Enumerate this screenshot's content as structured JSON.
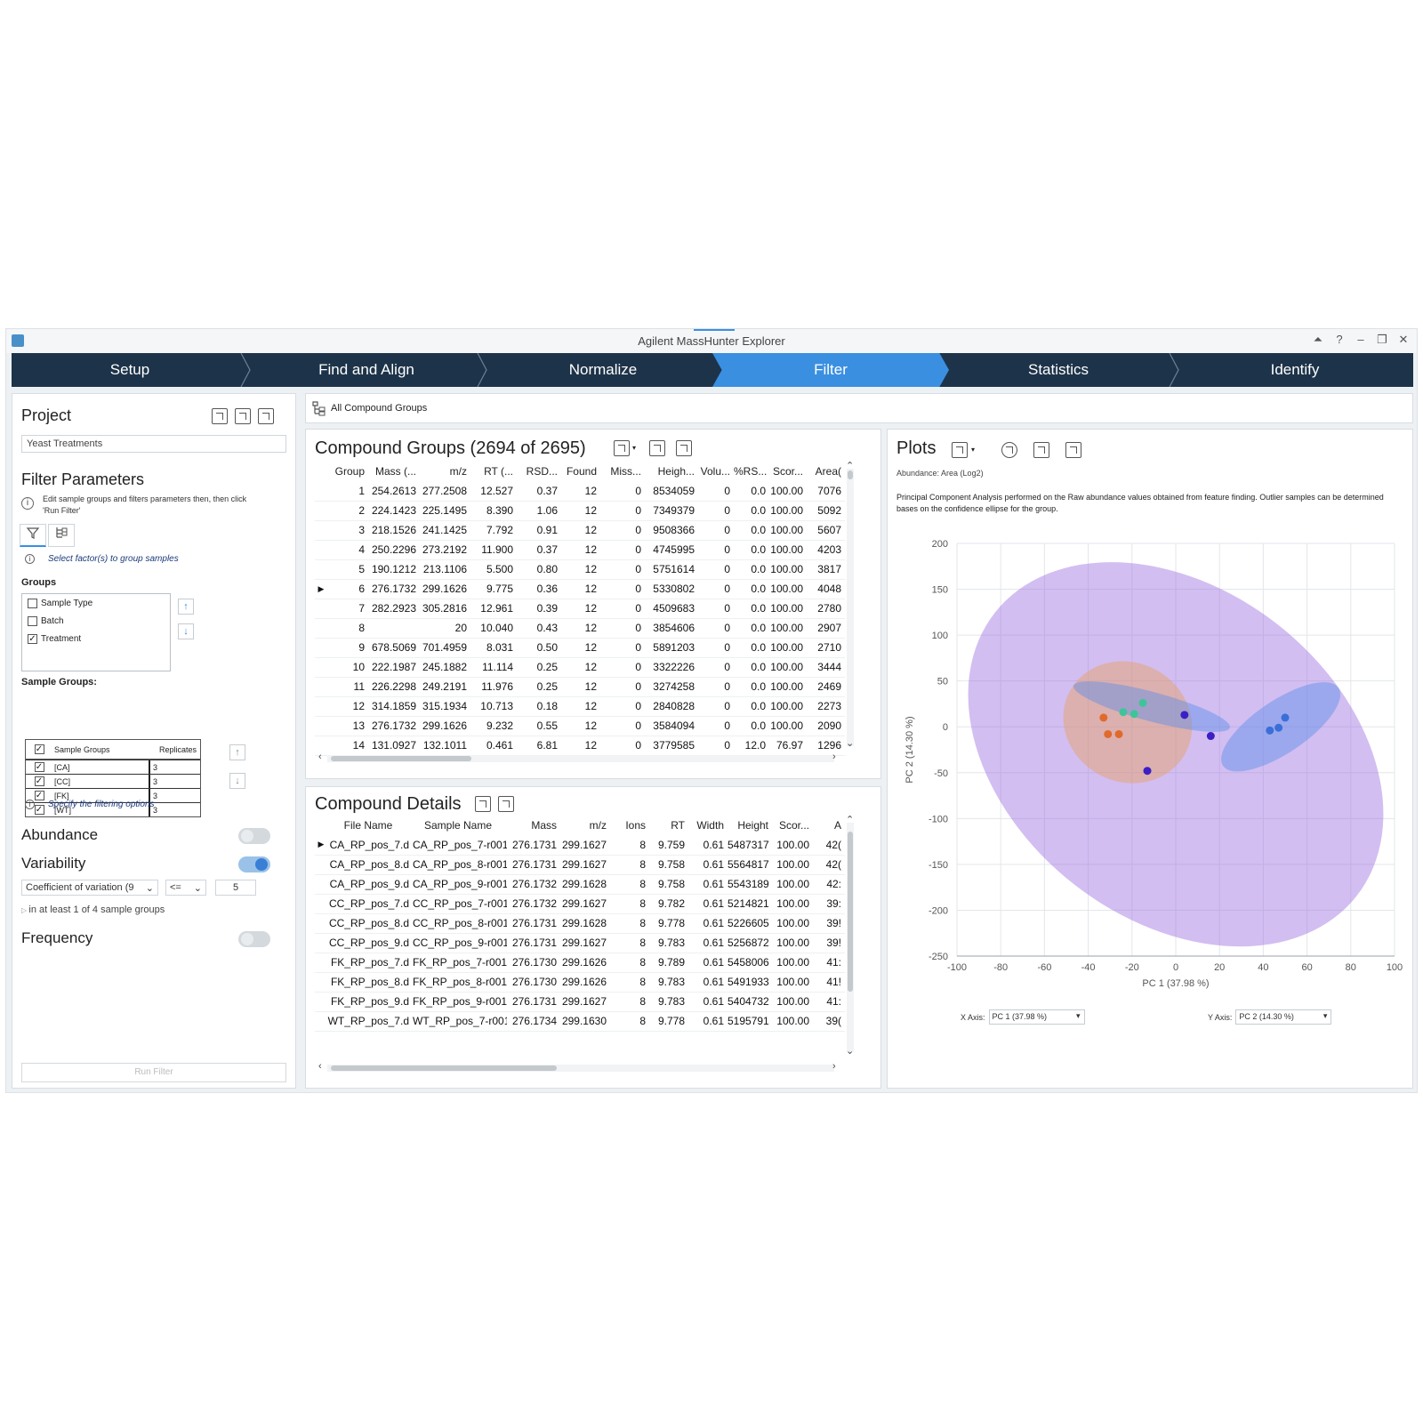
{
  "window": {
    "title": "Agilent MassHunter Explorer",
    "controls": [
      "⏶",
      "?",
      "–",
      "❐",
      "✕"
    ]
  },
  "workflow": {
    "steps": [
      "Setup",
      "Find and Align",
      "Normalize",
      "Filter",
      "Statistics",
      "Identify"
    ],
    "active": "Filter"
  },
  "project": {
    "title": "Project",
    "name": "Yeast Treatments"
  },
  "filter_params": {
    "title": "Filter Parameters",
    "info": "Edit sample groups and filters parameters then, then click 'Run Filter'",
    "group_hint": "Select factor(s) to group samples",
    "groups_label": "Groups",
    "groups": [
      {
        "label": "Sample Type",
        "checked": false
      },
      {
        "label": "Batch",
        "checked": false
      },
      {
        "label": "Treatment",
        "checked": true
      }
    ],
    "sample_groups_label": "Sample Groups:",
    "sample_groups_header": {
      "name": "Sample Groups",
      "replicates": "Replicates"
    },
    "sample_groups": [
      {
        "name": "[CA]",
        "replicates": "3"
      },
      {
        "name": "[CC]",
        "replicates": "3"
      },
      {
        "name": "[FK]",
        "replicates": "3"
      },
      {
        "name": "[WT]",
        "replicates": "3"
      }
    ],
    "filter_hint": "Specify the filtering options",
    "abundance_label": "Abundance",
    "variability_label": "Variability",
    "variability_metric": "Coefficient of variation (9",
    "variability_op": "<=",
    "variability_value": "5",
    "variability_scope": "in at least 1 of 4 sample groups",
    "frequency_label": "Frequency",
    "run_button": "Run Filter",
    "toggles": {
      "abundance": false,
      "variability": true,
      "frequency": false
    }
  },
  "breadcrumb": {
    "label": "All Compound Groups"
  },
  "compound_groups": {
    "title": "Compound Groups (2694 of 2695)",
    "columns": [
      "Group",
      "Mass (...",
      "m/z",
      "RT (...",
      "RSD...",
      "Found",
      "Miss...",
      "Heigh...",
      "Volu...",
      "%RS...",
      "Scor...",
      "Area("
    ],
    "selected_row": 5,
    "rows": [
      [
        "1",
        "254.2613",
        "277.2508",
        "12.527",
        "0.37",
        "12",
        "0",
        "8534059",
        "0",
        "0.0",
        "100.00",
        "7076"
      ],
      [
        "2",
        "224.1423",
        "225.1495",
        "8.390",
        "1.06",
        "12",
        "0",
        "7349379",
        "0",
        "0.0",
        "100.00",
        "5092"
      ],
      [
        "3",
        "218.1526",
        "241.1425",
        "7.792",
        "0.91",
        "12",
        "0",
        "9508366",
        "0",
        "0.0",
        "100.00",
        "5607"
      ],
      [
        "4",
        "250.2296",
        "273.2192",
        "11.900",
        "0.37",
        "12",
        "0",
        "4745995",
        "0",
        "0.0",
        "100.00",
        "4203"
      ],
      [
        "5",
        "190.1212",
        "213.1106",
        "5.500",
        "0.80",
        "12",
        "0",
        "5751614",
        "0",
        "0.0",
        "100.00",
        "3817"
      ],
      [
        "6",
        "276.1732",
        "299.1626",
        "9.775",
        "0.36",
        "12",
        "0",
        "5330802",
        "0",
        "0.0",
        "100.00",
        "4048"
      ],
      [
        "7",
        "282.2923",
        "305.2816",
        "12.961",
        "0.39",
        "12",
        "0",
        "4509683",
        "0",
        "0.0",
        "100.00",
        "2780"
      ],
      [
        "8",
        "",
        "20",
        "10.040",
        "0.43",
        "12",
        "0",
        "3854606",
        "0",
        "0.0",
        "100.00",
        "2907"
      ],
      [
        "9",
        "678.5069",
        "701.4959",
        "8.031",
        "0.50",
        "12",
        "0",
        "5891203",
        "0",
        "0.0",
        "100.00",
        "2710"
      ],
      [
        "10",
        "222.1987",
        "245.1882",
        "11.114",
        "0.25",
        "12",
        "0",
        "3322226",
        "0",
        "0.0",
        "100.00",
        "3444"
      ],
      [
        "11",
        "226.2298",
        "249.2191",
        "11.976",
        "0.25",
        "12",
        "0",
        "3274258",
        "0",
        "0.0",
        "100.00",
        "2469"
      ],
      [
        "12",
        "314.1859",
        "315.1934",
        "10.713",
        "0.18",
        "12",
        "0",
        "2840828",
        "0",
        "0.0",
        "100.00",
        "2273"
      ],
      [
        "13",
        "276.1732",
        "299.1626",
        "9.232",
        "0.55",
        "12",
        "0",
        "3584094",
        "0",
        "0.0",
        "100.00",
        "2090"
      ],
      [
        "14",
        "131.0927",
        "132.1011",
        "0.461",
        "6.81",
        "12",
        "0",
        "3779585",
        "0",
        "12.0",
        "76.97",
        "1296"
      ]
    ]
  },
  "compound_details": {
    "title": "Compound Details",
    "columns": [
      "File Name",
      "Sample Name",
      "Mass",
      "m/z",
      "Ions",
      "RT",
      "Width",
      "Height",
      "Scor...",
      "A"
    ],
    "selected_row": 0,
    "rows": [
      [
        "CA_RP_pos_7.d",
        "CA_RP_pos_7-r001",
        "276.1731",
        "299.1627",
        "8",
        "9.759",
        "0.61",
        "5487317",
        "100.00",
        "42("
      ],
      [
        "CA_RP_pos_8.d",
        "CA_RP_pos_8-r001",
        "276.1731",
        "299.1627",
        "8",
        "9.758",
        "0.61",
        "5564817",
        "100.00",
        "42("
      ],
      [
        "CA_RP_pos_9.d",
        "CA_RP_pos_9-r001",
        "276.1732",
        "299.1628",
        "8",
        "9.758",
        "0.61",
        "5543189",
        "100.00",
        "42:"
      ],
      [
        "CC_RP_pos_7.d",
        "CC_RP_pos_7-r001",
        "276.1732",
        "299.1627",
        "8",
        "9.782",
        "0.61",
        "5214821",
        "100.00",
        "39:"
      ],
      [
        "CC_RP_pos_8.d",
        "CC_RP_pos_8-r001",
        "276.1731",
        "299.1628",
        "8",
        "9.778",
        "0.61",
        "5226605",
        "100.00",
        "39!"
      ],
      [
        "CC_RP_pos_9.d",
        "CC_RP_pos_9-r001",
        "276.1731",
        "299.1627",
        "8",
        "9.783",
        "0.61",
        "5256872",
        "100.00",
        "39!"
      ],
      [
        "FK_RP_pos_7.d",
        "FK_RP_pos_7-r001",
        "276.1730",
        "299.1626",
        "8",
        "9.789",
        "0.61",
        "5458006",
        "100.00",
        "41:"
      ],
      [
        "FK_RP_pos_8.d",
        "FK_RP_pos_8-r001",
        "276.1730",
        "299.1626",
        "8",
        "9.783",
        "0.61",
        "5491933",
        "100.00",
        "41!"
      ],
      [
        "FK_RP_pos_9.d",
        "FK_RP_pos_9-r001",
        "276.1731",
        "299.1627",
        "8",
        "9.783",
        "0.61",
        "5404732",
        "100.00",
        "41:"
      ],
      [
        "WT_RP_pos_7.d",
        "WT_RP_pos_7-r001",
        "276.1734",
        "299.1630",
        "8",
        "9.778",
        "0.61",
        "5195791",
        "100.00",
        "39("
      ]
    ]
  },
  "plots": {
    "title": "Plots",
    "abundance_note": "Abundance: Area (Log2)",
    "description": "Principal Component Analysis performed on the Raw abundance values obtained from feature finding. Outlier samples can be determined bases on the confidence ellipse for the group.",
    "x_axis_label": "X Axis:",
    "x_axis_value": "PC 1 (37.98 %)",
    "y_axis_label": "Y Axis:",
    "y_axis_value": "PC 2 (14.30 %)"
  },
  "chart_data": {
    "type": "scatter",
    "title": "",
    "xlabel": "PC 1 (37.98 %)",
    "ylabel": "PC 2 (14.30 %)",
    "xlim": [
      -100,
      100
    ],
    "ylim": [
      -250,
      200
    ],
    "xticks": [
      -100,
      -80,
      -60,
      -40,
      -20,
      0,
      20,
      40,
      60,
      80,
      100
    ],
    "yticks": [
      200,
      150,
      100,
      50,
      0,
      -50,
      -100,
      -150,
      -200,
      -250
    ],
    "grid": true,
    "series": [
      {
        "color": "#e06a2c",
        "x": [
          -33,
          -31,
          -26
        ],
        "y": [
          10,
          -8,
          -8
        ]
      },
      {
        "color": "#3fc49a",
        "x": [
          -24,
          -19,
          -15
        ],
        "y": [
          16,
          14,
          26
        ]
      },
      {
        "color": "#3b1fc4",
        "x": [
          -13,
          4,
          16
        ],
        "y": [
          -48,
          13,
          -10
        ]
      },
      {
        "color": "#3a6fd8",
        "x": [
          43,
          47,
          50
        ],
        "y": [
          -4,
          -1,
          10
        ]
      }
    ],
    "ellipses": [
      {
        "color": "#9b6fe0",
        "cx": 0,
        "cy": -30,
        "rx": 105,
        "ry": 180,
        "angle_deg": 38
      },
      {
        "color": "#e8a060",
        "cx": -22,
        "cy": 5,
        "rx": 30,
        "ry": 65,
        "angle_deg": 28
      },
      {
        "color": "#5b8ee8",
        "cx": -11,
        "cy": 22,
        "rx": 37,
        "ry": 16,
        "angle_deg": 15
      },
      {
        "color": "#5b8ee8",
        "cx": 48,
        "cy": 0,
        "rx": 12,
        "ry": 76,
        "angle_deg": 56
      }
    ]
  },
  "colors": {
    "workflow_bg": "#1d3349",
    "workflow_active": "#3a8fe0",
    "accent": "#3a8fe0"
  }
}
